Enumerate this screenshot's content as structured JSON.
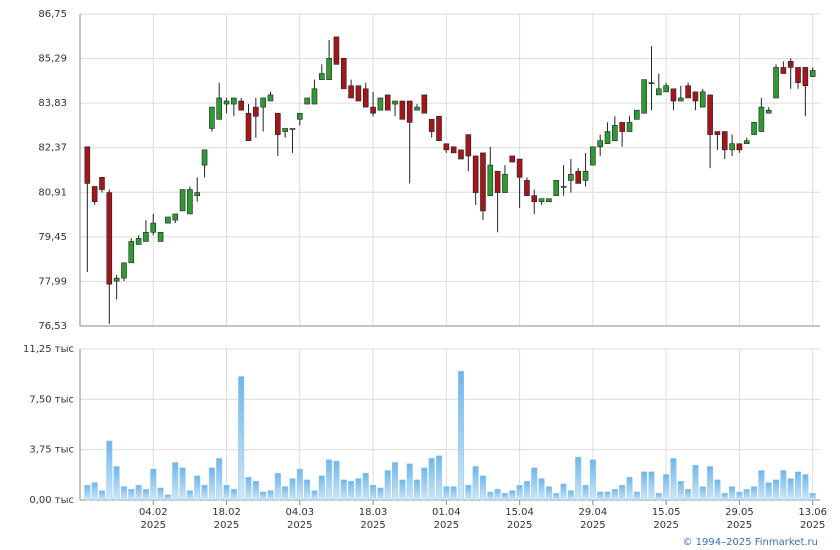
{
  "chart_data": [
    {
      "type": "candlestick",
      "open": [
        82.4,
        81.1,
        81.4,
        80.9,
        78.0,
        78.1,
        78.6,
        79.2,
        79.3,
        79.6,
        79.3,
        79.9,
        80.0,
        80.3,
        80.2,
        80.8,
        81.8,
        83.0,
        83.3,
        83.8,
        83.8,
        83.9,
        83.5,
        83.7,
        83.7,
        83.9,
        83.5,
        82.9,
        83.0,
        83.3,
        83.8,
        83.8,
        84.6,
        84.6,
        86.0,
        85.3,
        84.4,
        84.4,
        84.3,
        83.7,
        83.6,
        84.1,
        83.8,
        83.9,
        83.9,
        83.6,
        84.1,
        83.3,
        83.4,
        82.5,
        82.4,
        82.3,
        82.8,
        82.1,
        82.2,
        80.8,
        81.6,
        80.9,
        82.1,
        82.0,
        81.3,
        80.8,
        80.6,
        80.6,
        80.8,
        81.1,
        81.3,
        81.6,
        81.3,
        81.8,
        82.4,
        82.5,
        82.6,
        83.2,
        82.9,
        83.3,
        83.5,
        84.5,
        84.1,
        84.2,
        84.3,
        83.9,
        84.4,
        84.2,
        83.7,
        84.1,
        82.9,
        82.9,
        82.3,
        82.5,
        82.5,
        82.8,
        82.9,
        83.5,
        84.0,
        85.0,
        85.2,
        85.0,
        85.0,
        84.7
      ],
      "high": [
        82.4,
        81.1,
        81.4,
        81.0,
        78.2,
        78.6,
        79.4,
        79.5,
        80.0,
        80.2,
        79.6,
        80.1,
        80.2,
        81.0,
        81.1,
        81.4,
        82.3,
        83.7,
        84.5,
        84.0,
        84.0,
        84.0,
        83.8,
        84.0,
        84.0,
        84.2,
        83.5,
        83.0,
        83.0,
        83.5,
        84.0,
        84.6,
        85.1,
        85.9,
        86.0,
        85.3,
        84.6,
        84.4,
        84.5,
        84.2,
        84.0,
        84.1,
        83.9,
        83.9,
        83.9,
        83.8,
        84.1,
        83.3,
        83.4,
        82.5,
        82.4,
        82.3,
        82.8,
        82.1,
        82.2,
        82.4,
        81.6,
        81.8,
        82.1,
        82.0,
        81.4,
        81.0,
        80.7,
        80.7,
        81.3,
        81.8,
        82.0,
        81.7,
        82.2,
        82.4,
        82.8,
        83.2,
        83.4,
        83.2,
        83.4,
        83.6,
        84.6,
        85.7,
        84.8,
        84.5,
        84.3,
        84.4,
        84.5,
        84.2,
        84.3,
        84.1,
        82.9,
        82.9,
        82.8,
        82.5,
        82.7,
        83.2,
        84.0,
        83.7,
        85.1,
        85.2,
        85.3,
        85.0,
        85.0,
        85.0
      ],
      "low": [
        78.3,
        80.5,
        80.9,
        76.6,
        77.4,
        78.0,
        78.6,
        79.2,
        79.3,
        79.5,
        79.3,
        79.9,
        79.9,
        80.3,
        80.2,
        80.6,
        81.4,
        82.9,
        83.3,
        83.5,
        83.4,
        83.6,
        82.6,
        82.7,
        82.9,
        83.9,
        82.1,
        82.7,
        82.2,
        83.1,
        83.8,
        83.8,
        84.6,
        84.6,
        85.1,
        84.3,
        84.0,
        83.9,
        83.7,
        83.4,
        83.6,
        83.6,
        83.4,
        83.3,
        81.2,
        83.6,
        83.5,
        82.7,
        82.6,
        82.2,
        82.2,
        82.0,
        81.6,
        80.5,
        80.0,
        80.8,
        79.6,
        80.9,
        81.9,
        80.4,
        80.8,
        80.2,
        80.5,
        80.6,
        80.8,
        80.8,
        80.9,
        81.2,
        81.1,
        81.8,
        82.1,
        82.5,
        82.6,
        82.4,
        82.9,
        83.3,
        83.5,
        83.6,
        84.1,
        84.2,
        83.6,
        83.9,
        84.0,
        83.6,
        83.7,
        81.7,
        82.3,
        82.0,
        82.1,
        82.2,
        82.5,
        82.8,
        82.9,
        83.5,
        84.0,
        84.8,
        84.3,
        84.3,
        83.4,
        84.7
      ],
      "close": [
        81.2,
        80.6,
        81.0,
        77.9,
        78.1,
        78.6,
        79.3,
        79.4,
        79.6,
        79.9,
        79.6,
        80.1,
        80.2,
        81.0,
        81.0,
        80.9,
        82.3,
        83.7,
        84.0,
        83.9,
        84.0,
        83.6,
        82.6,
        83.4,
        84.0,
        84.1,
        82.8,
        83.0,
        83.0,
        83.5,
        84.0,
        84.3,
        84.8,
        85.3,
        85.1,
        84.3,
        84.0,
        83.9,
        83.7,
        83.5,
        84.0,
        83.6,
        83.9,
        83.3,
        83.2,
        83.7,
        83.5,
        82.9,
        82.6,
        82.3,
        82.2,
        82.0,
        82.1,
        80.9,
        80.3,
        81.8,
        80.9,
        81.5,
        81.9,
        81.4,
        80.8,
        80.6,
        80.7,
        80.7,
        81.3,
        81.1,
        81.5,
        81.2,
        81.6,
        82.4,
        82.6,
        82.9,
        83.1,
        82.9,
        83.2,
        83.6,
        84.6,
        84.5,
        84.3,
        84.4,
        83.9,
        84.0,
        84.0,
        83.9,
        84.2,
        82.8,
        82.8,
        82.3,
        82.5,
        82.3,
        82.6,
        83.2,
        83.7,
        83.6,
        85.0,
        84.8,
        85.0,
        84.5,
        84.4,
        84.9
      ],
      "up_color": "#2e9b32",
      "down_color": "#a3161a",
      "ylim": [
        76.53,
        86.75
      ],
      "yticks": [
        {
          "value": 76.53,
          "label": "76,53"
        },
        {
          "value": 77.99,
          "label": "77,99"
        },
        {
          "value": 79.45,
          "label": "79,45"
        },
        {
          "value": 80.91,
          "label": "80,91"
        },
        {
          "value": 82.37,
          "label": "82,37"
        },
        {
          "value": 83.83,
          "label": "83,83"
        },
        {
          "value": 85.29,
          "label": "85,29"
        },
        {
          "value": 86.75,
          "label": "86,75"
        }
      ],
      "grid": true
    },
    {
      "type": "bar",
      "values": [
        1.1,
        1.3,
        0.7,
        4.4,
        2.5,
        1.0,
        0.8,
        1.1,
        0.8,
        2.3,
        0.9,
        0.4,
        2.8,
        2.4,
        0.7,
        1.8,
        1.1,
        2.4,
        3.1,
        1.1,
        0.8,
        9.2,
        1.7,
        1.4,
        0.6,
        0.7,
        2.0,
        1.0,
        1.6,
        2.3,
        1.5,
        0.7,
        1.8,
        3.0,
        2.9,
        1.5,
        1.4,
        1.6,
        2.0,
        1.1,
        0.9,
        2.2,
        2.8,
        1.5,
        2.7,
        1.5,
        2.4,
        3.1,
        3.3,
        1.0,
        1.0,
        9.6,
        1.1,
        2.5,
        1.8,
        0.6,
        0.8,
        0.5,
        0.7,
        1.1,
        1.4,
        2.4,
        1.6,
        1.0,
        0.5,
        1.2,
        0.7,
        3.2,
        1.1,
        3.0,
        0.6,
        0.6,
        0.8,
        1.1,
        1.7,
        0.6,
        2.1,
        2.1,
        0.5,
        1.9,
        3.1,
        1.4,
        0.8,
        2.6,
        1.0,
        2.5,
        1.5,
        0.5,
        1.0,
        0.6,
        0.8,
        1.0,
        2.2,
        1.3,
        1.5,
        2.2,
        1.6,
        2.1,
        1.9,
        0.5
      ],
      "color": "#8cc6ee",
      "ylim": [
        0,
        11.25
      ],
      "yticks": [
        {
          "value": 0,
          "label": "0,00 тыс"
        },
        {
          "value": 3.75,
          "label": "3,75 тыс"
        },
        {
          "value": 7.5,
          "label": "7,50 тыс"
        },
        {
          "value": 11.25,
          "label": "11,25 тыс"
        }
      ],
      "xlim": [
        -1,
        100
      ],
      "xticks": [
        {
          "value": 9,
          "label": "04.02",
          "sublabel": "2025"
        },
        {
          "value": 19,
          "label": "18.02",
          "sublabel": "2025"
        },
        {
          "value": 29,
          "label": "04.03",
          "sublabel": "2025"
        },
        {
          "value": 39,
          "label": "18.03",
          "sublabel": "2025"
        },
        {
          "value": 49,
          "label": "01.04",
          "sublabel": "2025"
        },
        {
          "value": 59,
          "label": "15.04",
          "sublabel": "2025"
        },
        {
          "value": 69,
          "label": "29.04",
          "sublabel": "2025"
        },
        {
          "value": 79,
          "label": "15.05",
          "sublabel": "2025"
        },
        {
          "value": 89,
          "label": "29.05",
          "sublabel": "2025"
        },
        {
          "value": 99,
          "label": "13.06",
          "sublabel": "2025"
        }
      ],
      "grid": true,
      "credit": "© 1994–2025 Finmarket.ru"
    }
  ]
}
